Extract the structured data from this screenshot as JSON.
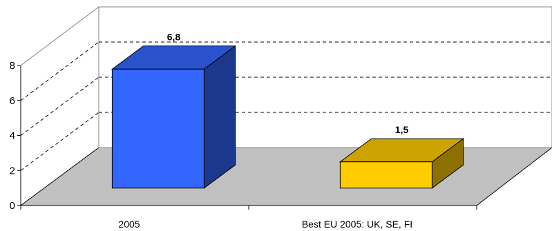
{
  "chart_data": {
    "type": "bar",
    "categories": [
      "2005",
      "Best EU 2005: UK, SE, FI"
    ],
    "values": [
      6.8,
      1.5
    ],
    "value_labels": [
      "6,8",
      "1,5"
    ],
    "ylim": [
      0,
      8
    ],
    "yticks": [
      0,
      2,
      4,
      6,
      8
    ],
    "grid": true,
    "style": "3d",
    "colors": [
      "#3366FF",
      "#FFCC00"
    ],
    "floor_color": "#C0C0C0"
  }
}
